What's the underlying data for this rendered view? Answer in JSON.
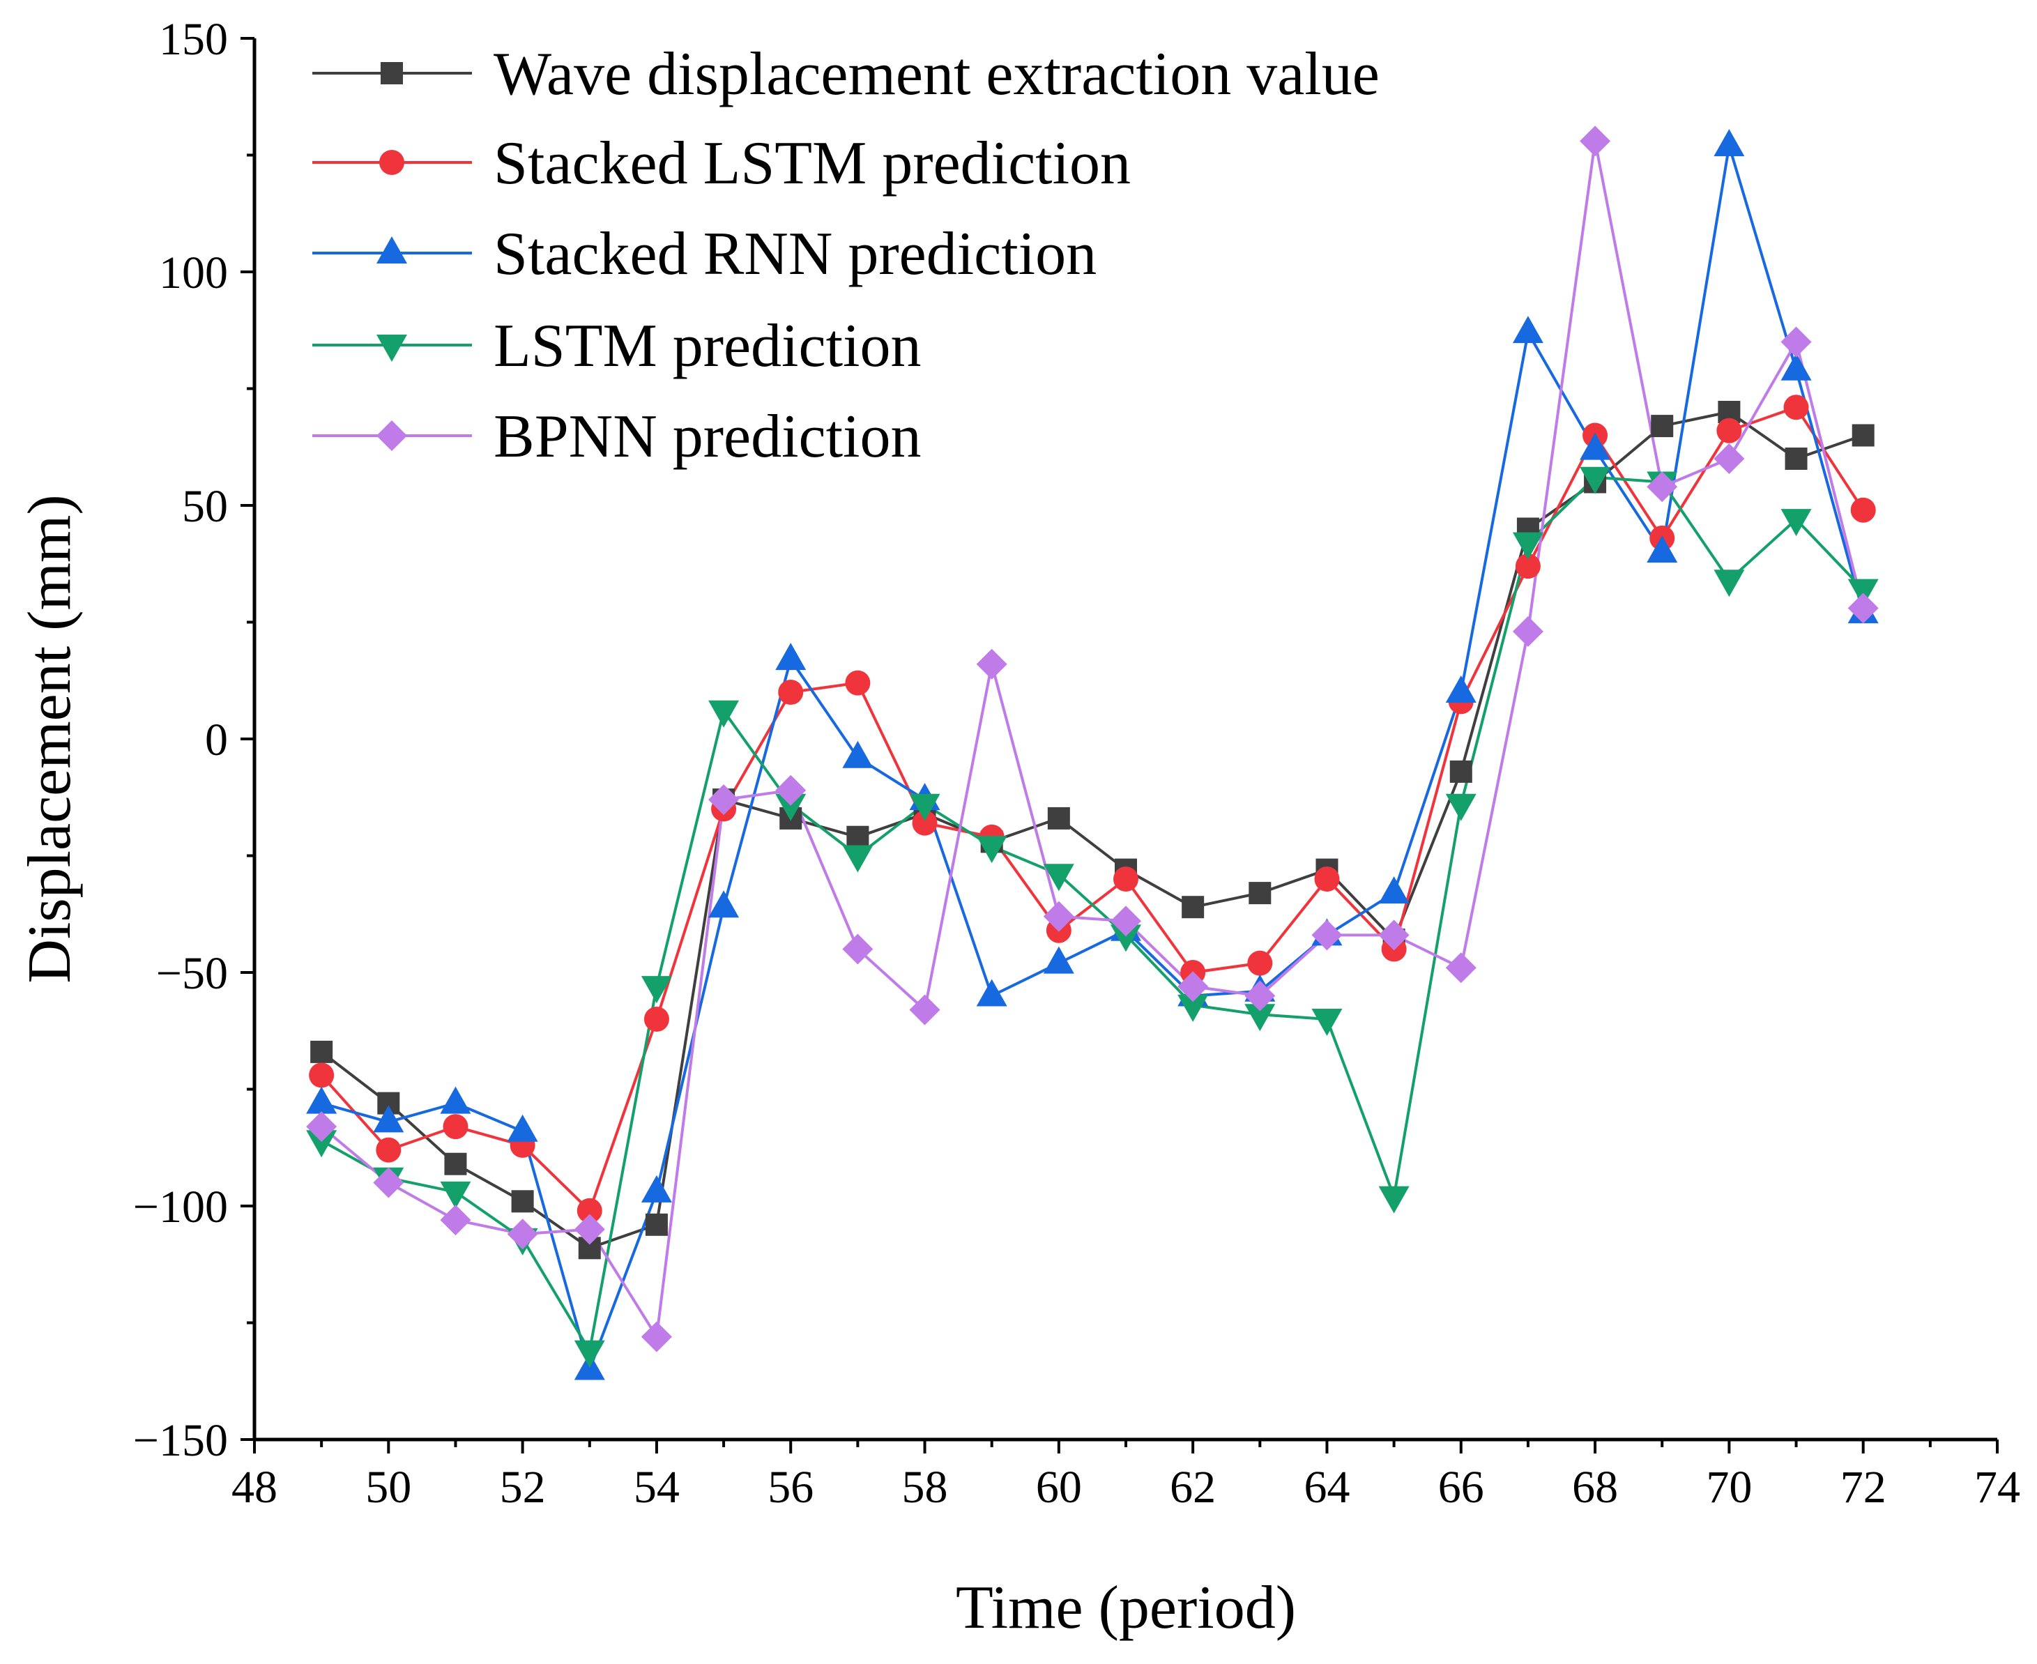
{
  "chart_data": {
    "type": "line",
    "title": "",
    "xlabel": "Time (period)",
    "ylabel": "Displacement (mm)",
    "xlim": [
      48,
      74
    ],
    "ylim": [
      -150,
      150
    ],
    "xticks": [
      48,
      50,
      52,
      54,
      56,
      58,
      60,
      62,
      64,
      66,
      68,
      70,
      72,
      74
    ],
    "yticks": [
      -150,
      -100,
      -50,
      0,
      50,
      100,
      150
    ],
    "ytick_labels": [
      "−150",
      "−100",
      "−50",
      "0",
      "50",
      "100",
      "150"
    ],
    "grid": false,
    "legend_position": "top-left",
    "x": [
      49,
      50,
      51,
      52,
      53,
      54,
      55,
      56,
      57,
      58,
      59,
      60,
      61,
      62,
      63,
      64,
      65,
      66,
      67,
      68,
      69,
      70,
      71,
      72
    ],
    "series": [
      {
        "name": "Wave displacement extraction value",
        "color": "#3f3f3f",
        "marker": "square",
        "values": [
          -67,
          -78,
          -91,
          -99,
          -109,
          -104,
          -13,
          -17,
          -21,
          -16,
          -22,
          -17,
          -28,
          -36,
          -33,
          -28,
          -43,
          -7,
          45,
          55,
          67,
          70,
          60,
          65
        ]
      },
      {
        "name": "Stacked LSTM prediction",
        "color": "#f0343c",
        "marker": "circle",
        "values": [
          -72,
          -88,
          -83,
          -87,
          -101,
          -60,
          -15,
          10,
          12,
          -18,
          -21,
          -41,
          -30,
          -50,
          -48,
          -30,
          -45,
          8,
          37,
          65,
          43,
          66,
          71,
          49
        ]
      },
      {
        "name": "Stacked RNN prediction",
        "color": "#1769e0",
        "marker": "triangle-up",
        "values": [
          -78,
          -82,
          -78,
          -84,
          -135,
          -97,
          -36,
          17,
          -4,
          -13,
          -55,
          -48,
          -41,
          -55,
          -54,
          -42,
          -33,
          10,
          87,
          62,
          40,
          127,
          79,
          27
        ]
      },
      {
        "name": "LSTM prediction",
        "color": "#14a06a",
        "marker": "triangle-down",
        "values": [
          -86,
          -94,
          -97,
          -107,
          -131,
          -53,
          6,
          -14,
          -25,
          -14,
          -23,
          -29,
          -42,
          -57,
          -59,
          -60,
          -98,
          -14,
          42,
          56,
          55,
          34,
          47,
          32
        ]
      },
      {
        "name": "BPNN prediction",
        "color": "#bf7be8",
        "marker": "diamond",
        "values": [
          -83,
          -95,
          -103,
          -106,
          -105,
          -128,
          -13,
          -11,
          -45,
          -58,
          16,
          -38,
          -39,
          -53,
          -55,
          -42,
          -42,
          -49,
          23,
          128,
          54,
          60,
          85,
          28
        ]
      }
    ]
  }
}
